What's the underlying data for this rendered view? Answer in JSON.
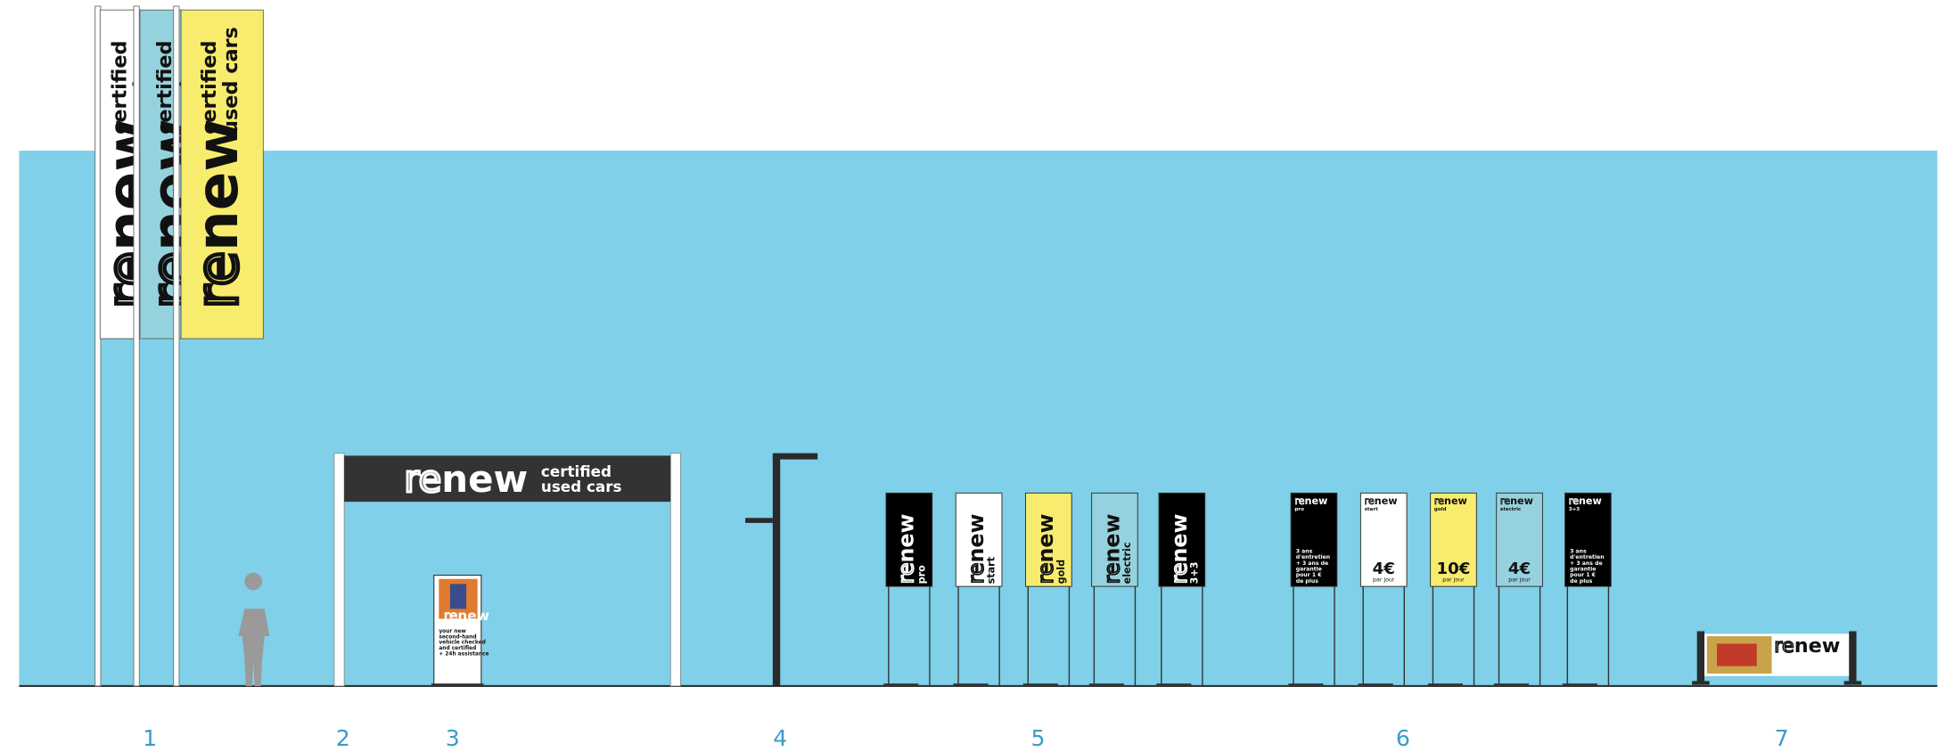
{
  "logo": {
    "re": "re",
    "new": "new"
  },
  "tagline": {
    "line1": "certified",
    "line2": "used cars"
  },
  "poster": {
    "lines": [
      "your new",
      "second-hand",
      "vehicle checked",
      "and certified",
      "+ 24h assistance"
    ]
  },
  "totems": [
    {
      "label": "pro",
      "color": "#000000"
    },
    {
      "label": "start",
      "color": "#ffffff"
    },
    {
      "label": "gold",
      "color": "#f8ec6e"
    },
    {
      "label": "electric",
      "color": "#96d2dd"
    },
    {
      "label": "3+3",
      "color": "#000000"
    }
  ],
  "price_totems": [
    {
      "label": "pro",
      "color": "#000000",
      "lines": [
        "3 ans",
        "d'entretien",
        "+ 3 ans de",
        "garantie",
        "pour 1 €",
        "de plus"
      ]
    },
    {
      "label": "start",
      "color": "#ffffff",
      "price": "4€",
      "unit": "par jour"
    },
    {
      "label": "gold",
      "color": "#f8ec6e",
      "price": "10€",
      "unit": "par jour"
    },
    {
      "label": "electric",
      "color": "#96d2dd",
      "price": "4€",
      "unit": "par jour"
    },
    {
      "label": "3+3",
      "color": "#000000",
      "lines": [
        "3 ans",
        "d'entretien",
        "+ 3 ans de",
        "garantie",
        "pour 1 €",
        "de plus"
      ]
    }
  ],
  "markers": [
    "1",
    "2",
    "3",
    "4",
    "5",
    "6",
    "7"
  ]
}
